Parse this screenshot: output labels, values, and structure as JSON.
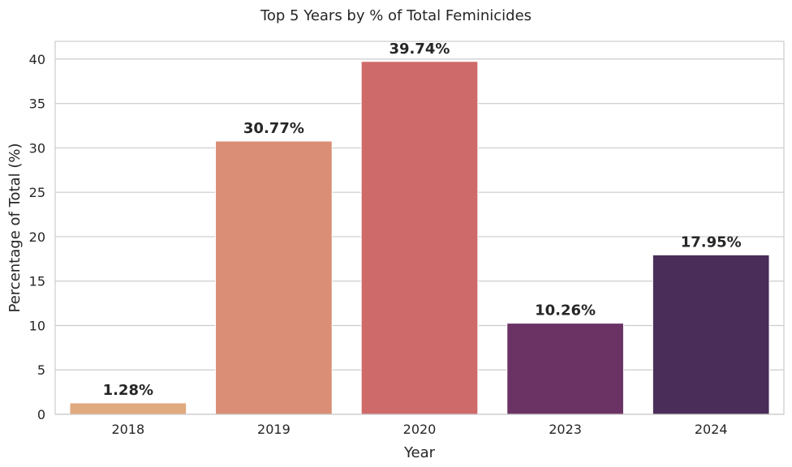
{
  "chart_data": {
    "type": "bar",
    "title": "Top 5 Years by % of Total Feminicides",
    "xlabel": "Year",
    "ylabel": "Percentage of Total (%)",
    "categories": [
      "2018",
      "2019",
      "2020",
      "2023",
      "2024"
    ],
    "values": [
      1.28,
      30.77,
      39.74,
      10.26,
      17.95
    ],
    "data_labels": [
      "1.28%",
      "30.77%",
      "39.74%",
      "10.26%",
      "17.95%"
    ],
    "colors": [
      "#e0a97e",
      "#d98e75",
      "#cf6a6a",
      "#6a3364",
      "#4a2d58"
    ],
    "ylim": [
      0,
      42
    ],
    "yticks": [
      0,
      5,
      10,
      15,
      20,
      25,
      30,
      35,
      40
    ],
    "grid": true,
    "legend": "none"
  }
}
